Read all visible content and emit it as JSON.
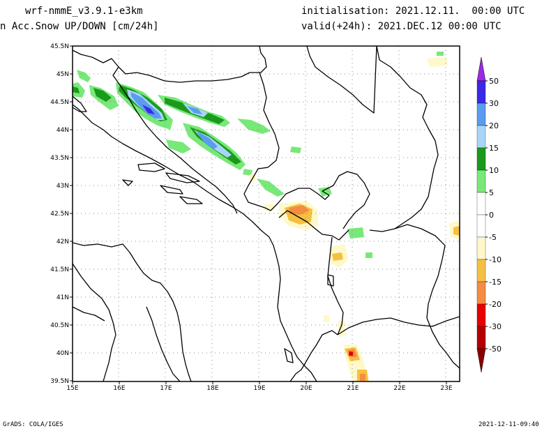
{
  "header": {
    "model": "wrf-nmmE_v3.9.1-e3km",
    "field": "n Acc.Snow UP/DOWN [cm/24h]",
    "init": "initialisation: 2021.12.11.  00:00 UTC",
    "valid": "valid(+24h): 2021.DEC.12 00:00 UTC"
  },
  "map": {
    "lat_labels": [
      "45.5N",
      "45N",
      "44.5N",
      "44N",
      "43.5N",
      "43N",
      "42.5N",
      "42N",
      "41.5N",
      "41N",
      "40.5N",
      "40N",
      "39.5N"
    ],
    "lon_labels": [
      "15E",
      "16E",
      "17E",
      "18E",
      "19E",
      "20E",
      "21E",
      "22E",
      "23E"
    ]
  },
  "legend": {
    "labels": [
      "50",
      "30",
      "20",
      "15",
      "10",
      "5",
      "0",
      "-5",
      "-10",
      "-15",
      "-20",
      "-30",
      "-50"
    ],
    "colors": [
      "#3a2ae6",
      "#5a9cf0",
      "#a8d4f8",
      "#1a9a1a",
      "#78e878",
      "#ffffff",
      "#ffffff",
      "#fff8c8",
      "#f5c042",
      "#f58c42",
      "#e80000",
      "#b40000"
    ],
    "top_color": "#9a2ae6",
    "bottom_color": "#8a0000"
  },
  "footer": {
    "left": "GrADS: COLA/IGES",
    "right": "2021-12-11-09:40"
  }
}
